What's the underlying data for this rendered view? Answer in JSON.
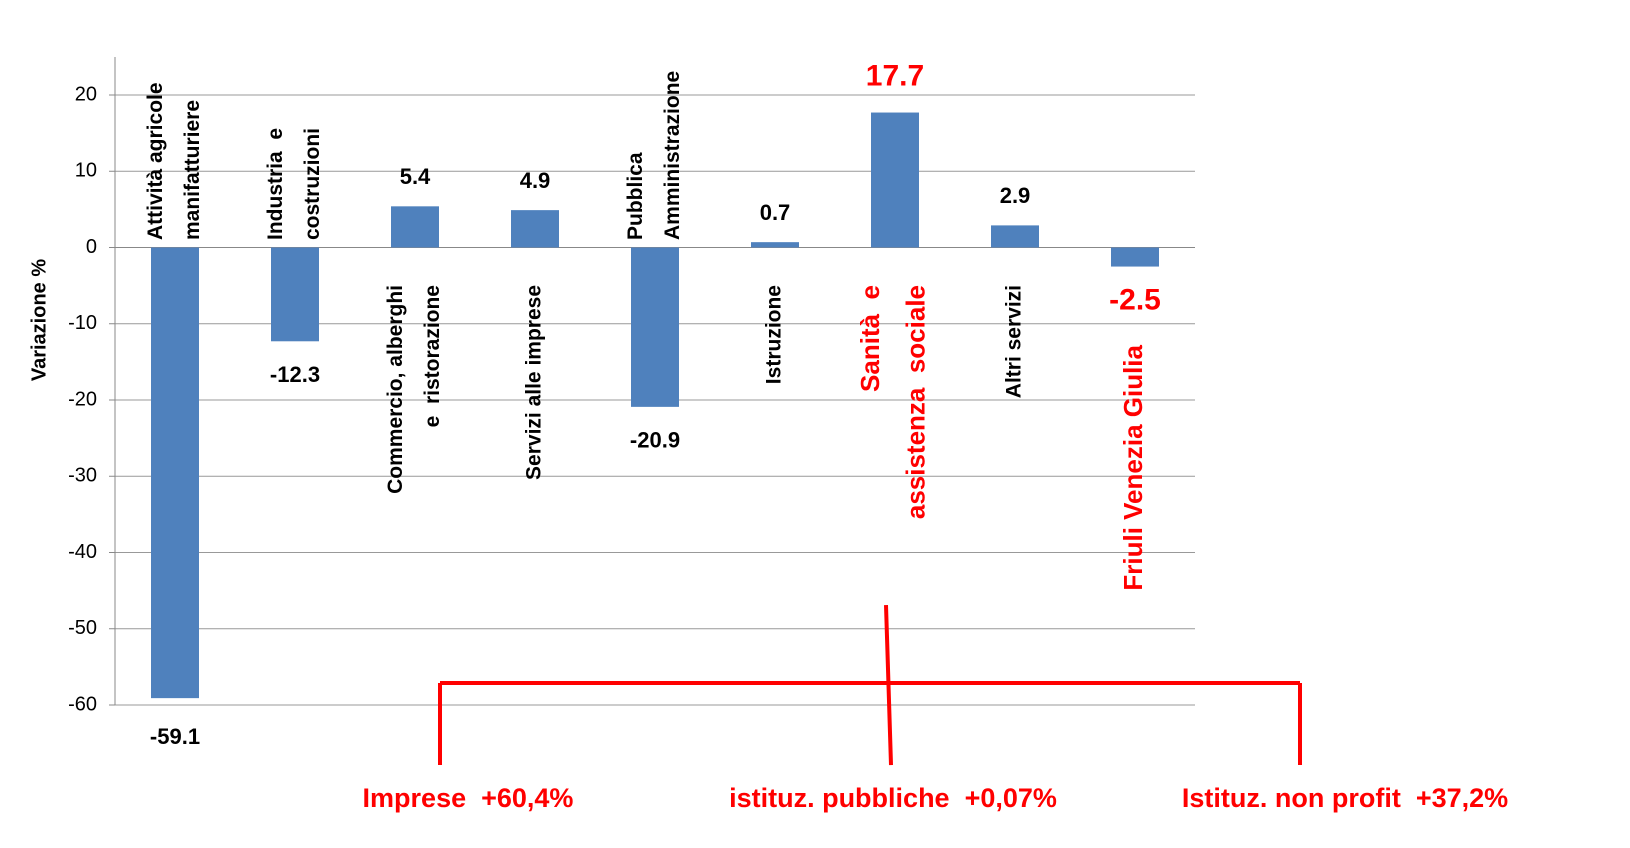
{
  "chart_data": {
    "type": "bar",
    "y_label": "Variazione %",
    "categories": [
      [
        "Attività agricole",
        "manifatturiere"
      ],
      [
        "Industria  e",
        "costruzioni"
      ],
      [
        "Commercio, alberghi",
        "e  ristorazione"
      ],
      [
        "Servizi alle imprese"
      ],
      [
        "Pubblica",
        "Amministrazione"
      ],
      [
        "Istruzione"
      ],
      [
        "Sanità  e",
        "assistenza  sociale"
      ],
      [
        "Altri servizi"
      ],
      [
        "Friuli Venezia Giulia"
      ]
    ],
    "values": [
      -59.1,
      -12.3,
      5.4,
      4.9,
      -20.9,
      0.7,
      17.7,
      2.9,
      -2.5
    ],
    "color": "#4f81bd",
    "label_colors": [
      "#000000",
      "#000000",
      "#000000",
      "#000000",
      "#000000",
      "#000000",
      "#ff0000",
      "#000000",
      "#ff0000"
    ],
    "ylim": [
      -60,
      20
    ],
    "yticks": [
      -60,
      -50,
      -40,
      -30,
      -20,
      -10,
      0,
      10,
      20
    ],
    "grid": true,
    "annotations": [
      "Imprese  +60,4%",
      "istituz. pubbliche  +0,07%",
      "Istituz. non profit  +37,2%"
    ],
    "annotation_color": "#ff0000"
  }
}
